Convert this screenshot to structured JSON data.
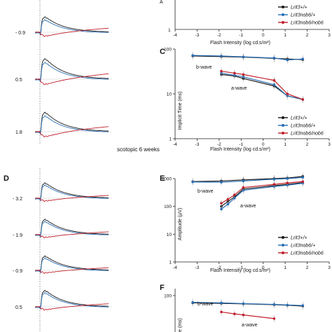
{
  "panels": {
    "left_top": {
      "intensity_labels": [
        "- 0.9",
        "0.5",
        "1.8"
      ]
    },
    "D": {
      "letter": "D",
      "intensity_labels": [
        "- 3.2",
        "- 1.9",
        "- 0.9",
        "0.5"
      ]
    },
    "scotopic_label": "scotopic 6 weeks"
  },
  "colors": {
    "black": "#1a1a1a",
    "blue": "#2a6fb5",
    "red": "#c0202c"
  },
  "legend": {
    "entries": [
      "Lrit3+/+",
      "Lrit3nob6/+",
      "Lrit3nob6/nob6"
    ]
  },
  "chart_data": [
    {
      "panel": "B (partial)",
      "type": "line",
      "xlabel": "Flash Intensity (log cd.s/m²)",
      "xlim": [
        -4,
        3
      ],
      "xticks": [
        -4,
        -3,
        -2,
        -1,
        0,
        1,
        2,
        3
      ],
      "yticks": [
        {
          "value": 1,
          "label": "1"
        }
      ],
      "ylabel_fragment": "A",
      "legend": [
        "Lrit3+/+",
        "Lrit3nob6/+",
        "Lrit3nob6/nob6"
      ]
    },
    {
      "panel": "C",
      "letter": "C",
      "type": "line",
      "ylabel": "Implicit Time (ms)",
      "xlabel": "Flash Intensity (log cd.s/m²)",
      "yscale": "log",
      "ylim": [
        1,
        100
      ],
      "xlim": [
        -4,
        3
      ],
      "xticks": [
        -4,
        -3,
        -2,
        -1,
        0,
        1,
        2,
        3
      ],
      "yticks": [
        {
          "value": 1,
          "label": "1"
        },
        {
          "value": 10,
          "label": "10"
        },
        {
          "value": 100,
          "label": "100"
        }
      ],
      "annotations": [
        "b-wave",
        "a-wave"
      ],
      "legend": [
        "Lrit3+/+",
        "Lrit3nob6/+",
        "Lrit3nob6/nob6"
      ],
      "series": [
        {
          "name": "Lrit3+/+ b-wave",
          "color": "black",
          "x": [
            -3.2,
            -1.9,
            -0.9,
            0.5,
            1.1,
            1.8
          ],
          "y": [
            70,
            68,
            66,
            62,
            60,
            58
          ]
        },
        {
          "name": "Lrit3nob6/+ b-wave",
          "color": "blue",
          "x": [
            -3.2,
            -1.9,
            -0.9,
            0.5,
            1.1,
            1.8
          ],
          "y": [
            72,
            70,
            67,
            63,
            57,
            60
          ]
        },
        {
          "name": "Lrit3+/+ a-wave",
          "color": "black",
          "x": [
            -1.9,
            -1.3,
            -0.9,
            0.5,
            1.1,
            1.8
          ],
          "y": [
            27,
            25,
            22,
            15,
            9,
            7.5
          ]
        },
        {
          "name": "Lrit3nob6/+ a-wave",
          "color": "blue",
          "x": [
            -1.9,
            -1.3,
            -0.9,
            0.5,
            1.1,
            1.8
          ],
          "y": [
            29,
            26,
            24,
            16,
            9,
            7.5
          ]
        },
        {
          "name": "Lrit3nob6/nob6 a-wave",
          "color": "red",
          "x": [
            -1.9,
            -1.3,
            -0.9,
            0.5,
            1.1,
            1.8
          ],
          "y": [
            32,
            29,
            27,
            20,
            10,
            7.5
          ]
        }
      ]
    },
    {
      "panel": "E",
      "letter": "E",
      "type": "line",
      "ylabel": "Amplitude (µV)",
      "xlabel": "Flash Intensity (log cd.s/m²)",
      "yscale": "log",
      "ylim": [
        1,
        1000
      ],
      "xlim": [
        -4,
        3
      ],
      "xticks": [
        -4,
        -3,
        -2,
        -1,
        0,
        1,
        2,
        3
      ],
      "yticks": [
        {
          "value": 1,
          "label": "1"
        },
        {
          "value": 10,
          "label": "10"
        },
        {
          "value": 100,
          "label": "100"
        },
        {
          "value": 1000,
          "label": "1000"
        }
      ],
      "annotations": [
        "b-wave",
        "a-wave"
      ],
      "legend": [
        "Lrit3+/+",
        "Lrit3nob6/+",
        "Lrit3nob6/nob6"
      ],
      "series": [
        {
          "name": "Lrit3+/+ b-wave",
          "color": "black",
          "x": [
            -3.2,
            -1.9,
            -0.9,
            0.5,
            1.1,
            1.8
          ],
          "y": [
            780,
            820,
            900,
            1000,
            1050,
            1200
          ]
        },
        {
          "name": "Lrit3nob6/+ b-wave",
          "color": "blue",
          "x": [
            -3.2,
            -1.9,
            -0.9,
            0.5,
            1.1,
            1.8
          ],
          "y": [
            760,
            740,
            820,
            950,
            1000,
            1100
          ]
        },
        {
          "name": "Lrit3+/+ a-wave",
          "color": "black",
          "x": [
            -1.9,
            -1.6,
            -1.3,
            -0.9,
            0.5,
            1.1,
            1.8
          ],
          "y": [
            100,
            150,
            220,
            420,
            560,
            620,
            720
          ]
        },
        {
          "name": "Lrit3nob6/+ a-wave",
          "color": "blue",
          "x": [
            -1.9,
            -1.6,
            -1.3,
            -0.9,
            0.5,
            1.1,
            1.8
          ],
          "y": [
            80,
            120,
            200,
            380,
            520,
            580,
            680
          ]
        },
        {
          "name": "Lrit3nob6/nob6 a-wave",
          "color": "red",
          "x": [
            -1.9,
            -1.6,
            -1.3,
            -0.9,
            0.5,
            1.1,
            1.8
          ],
          "y": [
            130,
            180,
            260,
            480,
            620,
            700,
            780
          ]
        }
      ]
    },
    {
      "panel": "F (partial)",
      "letter": "F",
      "type": "line",
      "ylabel_fragment": "e (ms)",
      "yscale": "log",
      "yticks": [
        {
          "value": 100,
          "label": "100"
        }
      ],
      "annotations": [
        "b-wave",
        "a-wave"
      ],
      "series": [
        {
          "name": "Lrit3+/+ b-wave",
          "color": "black",
          "x": [
            -3.2,
            -1.9,
            -0.9,
            0.5,
            1.1,
            1.8
          ],
          "y": [
            62,
            60,
            58,
            55,
            53,
            50
          ]
        },
        {
          "name": "Lrit3nob6/+ b-wave",
          "color": "blue",
          "x": [
            -3.2,
            -1.9,
            -0.9,
            0.5,
            1.1,
            1.8
          ],
          "y": [
            64,
            62,
            59,
            56,
            54,
            52
          ]
        },
        {
          "name": "Lrit3nob6/nob6 a-wave",
          "color": "red",
          "x": [
            -1.9,
            -1.3,
            -0.9,
            0.5
          ],
          "y": [
            34,
            30,
            28,
            22
          ]
        }
      ]
    }
  ]
}
